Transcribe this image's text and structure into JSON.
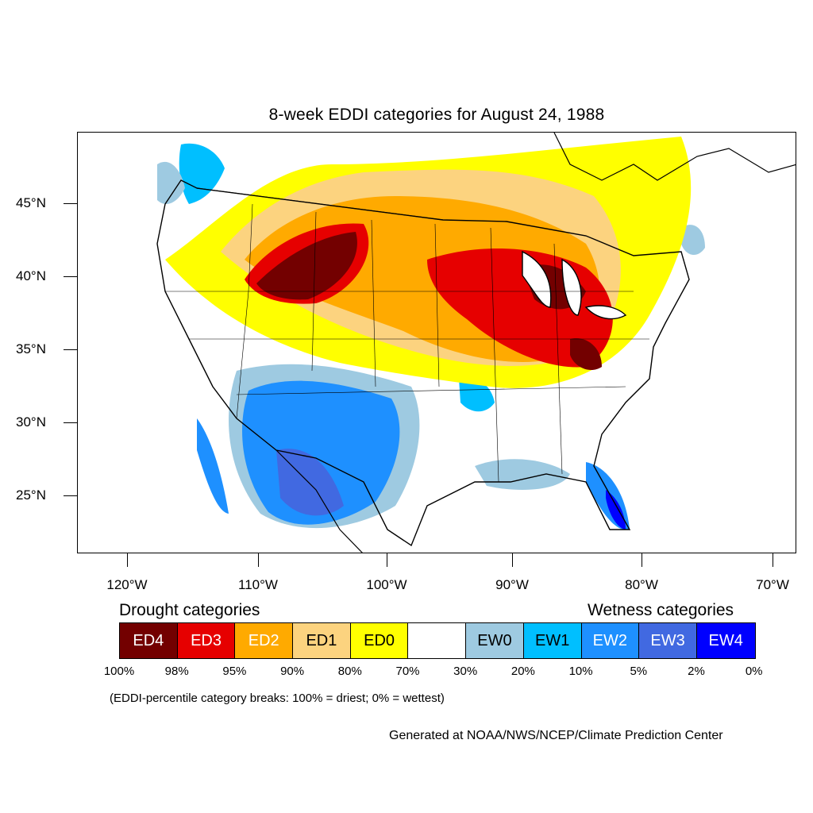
{
  "title": "8-week EDDI categories for August 24, 1988",
  "map": {
    "lat_ticks": [
      "45°N",
      "40°N",
      "35°N",
      "30°N",
      "25°N"
    ],
    "lon_ticks": [
      "120°W",
      "110°W",
      "100°W",
      "90°W",
      "80°W",
      "70°W"
    ]
  },
  "legend": {
    "drought_heading": "Drought categories",
    "wetness_heading": "Wetness categories",
    "categories": [
      {
        "label": "ED4",
        "color": "#730000",
        "text_color": "#ffffff"
      },
      {
        "label": "ED3",
        "color": "#e60000",
        "text_color": "#ffffff"
      },
      {
        "label": "ED2",
        "color": "#ffaa00",
        "text_color": "#ffffff"
      },
      {
        "label": "ED1",
        "color": "#fcd37f",
        "text_color": "#000000"
      },
      {
        "label": "ED0",
        "color": "#ffff00",
        "text_color": "#000000"
      },
      {
        "label": "",
        "color": "#ffffff",
        "text_color": "#000000"
      },
      {
        "label": "EW0",
        "color": "#9ecae1",
        "text_color": "#000000"
      },
      {
        "label": "EW1",
        "color": "#00bfff",
        "text_color": "#000000"
      },
      {
        "label": "EW2",
        "color": "#1e90ff",
        "text_color": "#ffffff"
      },
      {
        "label": "EW3",
        "color": "#4169e1",
        "text_color": "#ffffff"
      },
      {
        "label": "EW4",
        "color": "#0000ff",
        "text_color": "#ffffff"
      }
    ],
    "breaks": [
      "100%",
      "98%",
      "95%",
      "90%",
      "80%",
      "70%",
      "30%",
      "20%",
      "10%",
      "5%",
      "2%",
      "0%"
    ],
    "note": "(EDDI-percentile category breaks: 100% = driest; 0% = wettest)"
  },
  "credit": "Generated at NOAA/NWS/NCEP/Climate Prediction Center"
}
